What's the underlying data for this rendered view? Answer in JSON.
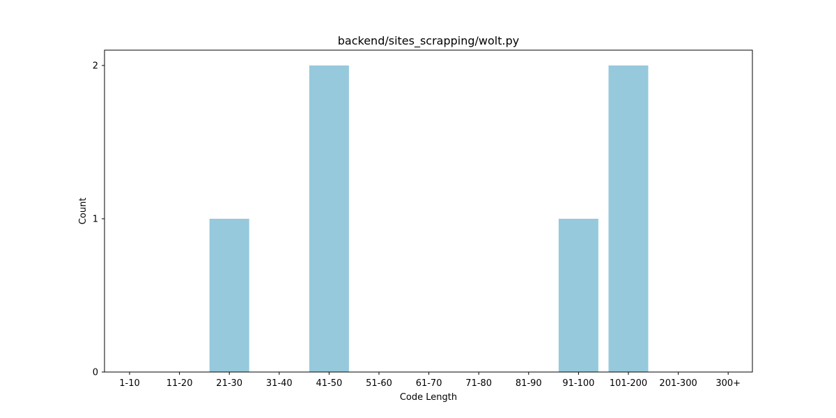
{
  "chart_data": {
    "type": "bar",
    "title": "backend/sites_scrapping/wolt.py",
    "xlabel": "Code Length",
    "ylabel": "Count",
    "categories": [
      "1-10",
      "11-20",
      "21-30",
      "31-40",
      "41-50",
      "51-60",
      "61-70",
      "71-80",
      "81-90",
      "91-100",
      "101-200",
      "201-300",
      "300+"
    ],
    "values": [
      0,
      0,
      1,
      0,
      2,
      0,
      0,
      0,
      0,
      1,
      2,
      0,
      0
    ],
    "ylim": [
      0,
      2.1
    ],
    "yticks": [
      0,
      1,
      2
    ],
    "bar_color": "#96c9dc",
    "grid": false,
    "legend": "none"
  }
}
